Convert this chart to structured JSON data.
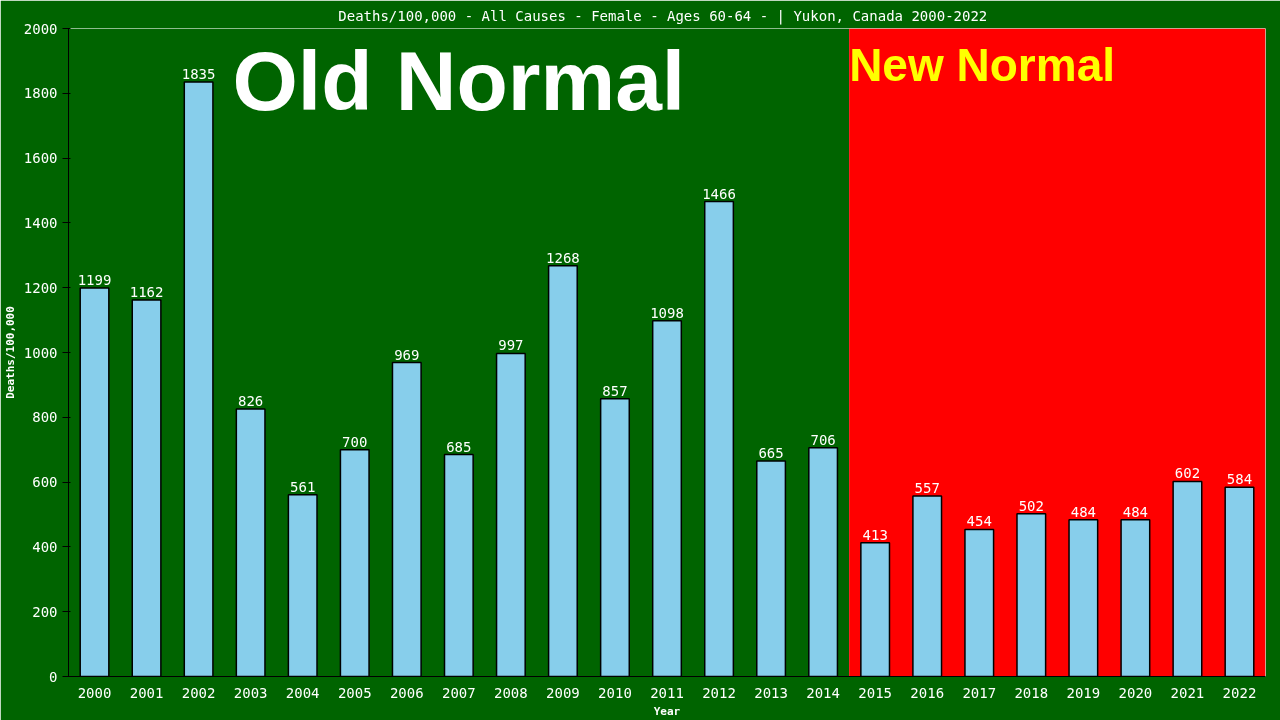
{
  "chart_data": {
    "type": "bar",
    "title": "Deaths/100,000 - All Causes - Female - Ages 60-64 -  | Yukon, Canada 2000-2022",
    "xlabel": "Year",
    "ylabel": "Deaths/100,000",
    "categories": [
      "2000",
      "2001",
      "2002",
      "2003",
      "2004",
      "2005",
      "2006",
      "2007",
      "2008",
      "2009",
      "2010",
      "2011",
      "2012",
      "2013",
      "2014",
      "2015",
      "2016",
      "2017",
      "2018",
      "2019",
      "2020",
      "2021",
      "2022"
    ],
    "values": [
      1199,
      1162,
      1835,
      826,
      561,
      700,
      969,
      685,
      997,
      1268,
      857,
      1098,
      1466,
      665,
      706,
      413,
      557,
      454,
      502,
      484,
      484,
      602,
      584
    ],
    "color": "#87ceeb",
    "data_labels": true,
    "ylim": [
      0,
      2000
    ],
    "yticks": [
      0,
      200,
      400,
      600,
      800,
      1000,
      1200,
      1400,
      1600,
      1800,
      2000
    ],
    "grid": false,
    "bands": [
      {
        "axis": "x",
        "from": "2000",
        "to": "2014",
        "label": "Old Normal",
        "color": "#006400"
      },
      {
        "axis": "x",
        "from": "2015",
        "to": "2022",
        "label": "New Normal",
        "color": "#ff0000"
      }
    ]
  }
}
